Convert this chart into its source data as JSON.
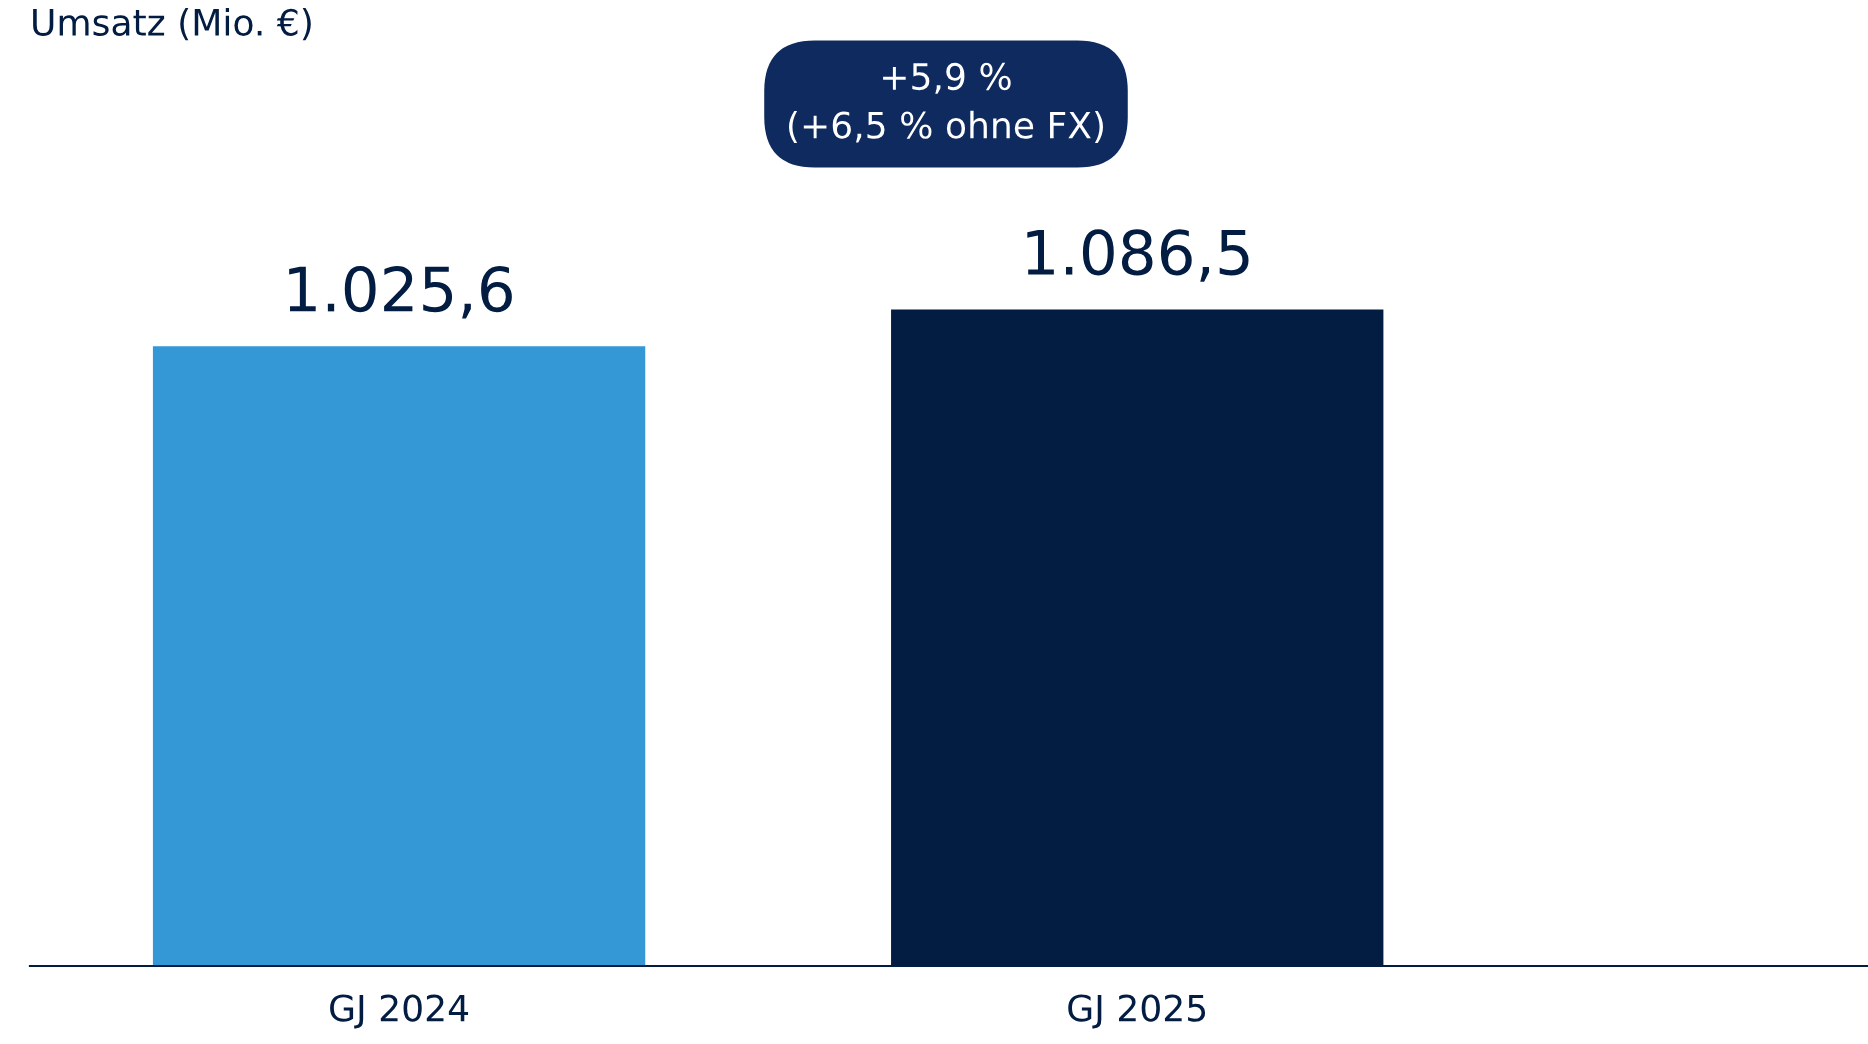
{
  "chart_data": {
    "type": "bar",
    "title": "Umsatz (Mio. €)",
    "categories": [
      "GJ 2024",
      "GJ 2025"
    ],
    "values": [
      1025.6,
      1086.5
    ],
    "colors": [
      "#3497d6",
      "#021c42"
    ],
    "value_labels": [
      "1.025,6",
      "1.086,5"
    ],
    "annotations": [
      "+5,9 %",
      "(+6,5 % ohne FX)"
    ]
  }
}
